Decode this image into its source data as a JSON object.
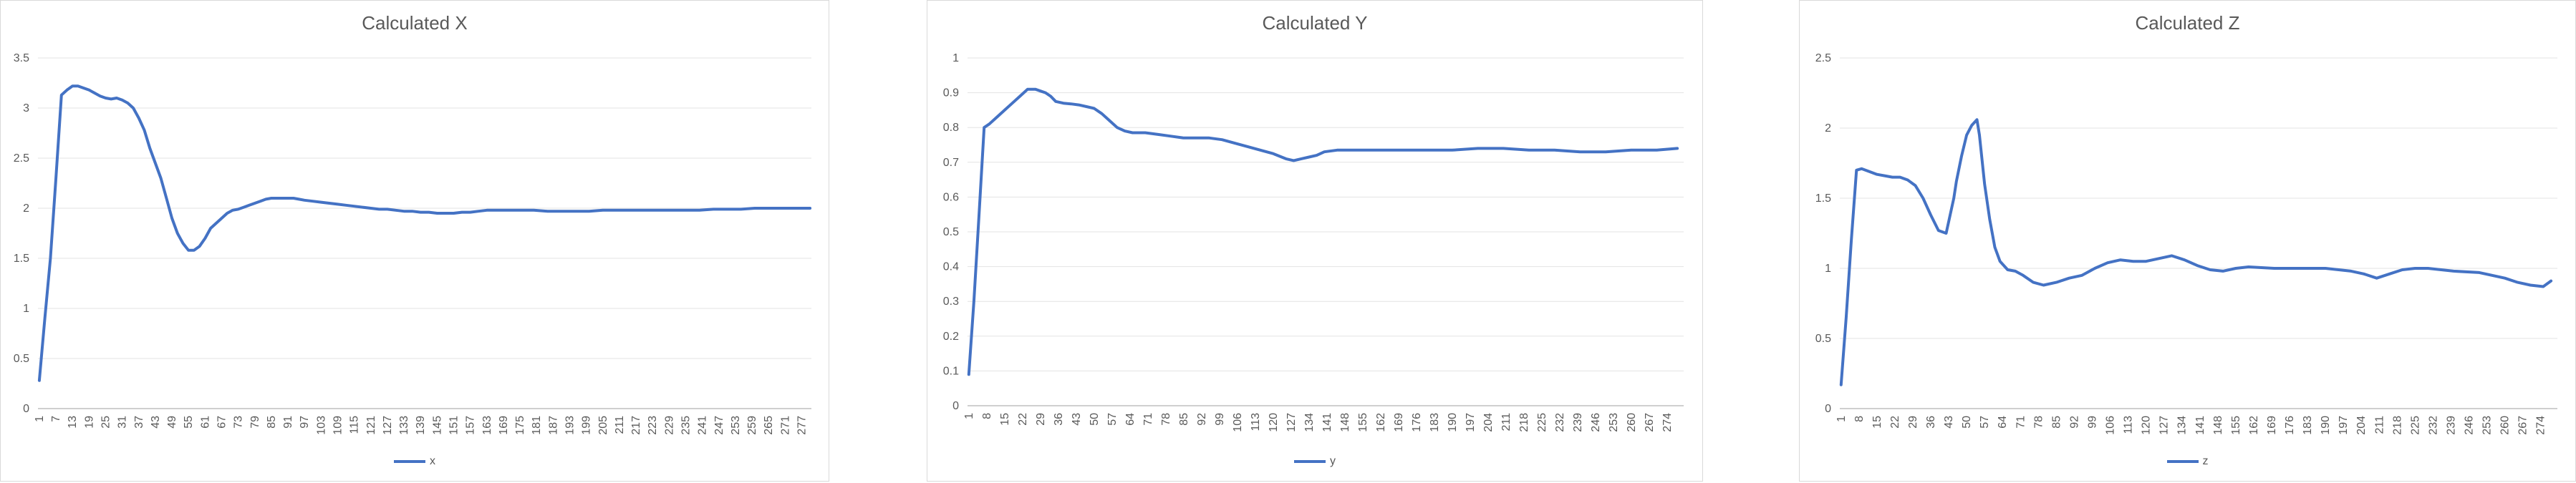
{
  "chart_data": [
    {
      "type": "line",
      "title": "Calculated X",
      "legend": "x",
      "legend_position": "bottom",
      "grid": true,
      "ylim": [
        0,
        3.5
      ],
      "yticks": [
        "0",
        "0.5",
        "1",
        "1.5",
        "2",
        "2.5",
        "3",
        "3.5"
      ],
      "xticks": [
        "1",
        "7",
        "13",
        "19",
        "25",
        "31",
        "37",
        "43",
        "49",
        "55",
        "61",
        "67",
        "73",
        "79",
        "85",
        "91",
        "97",
        "103",
        "109",
        "115",
        "121",
        "127",
        "133",
        "139",
        "145",
        "151",
        "157",
        "163",
        "169",
        "175",
        "181",
        "187",
        "193",
        "199",
        "205",
        "211",
        "217",
        "223",
        "229",
        "235",
        "241",
        "247",
        "253",
        "259",
        "265",
        "271",
        "277"
      ],
      "x": [
        1,
        3,
        5,
        7,
        9,
        11,
        13,
        15,
        17,
        19,
        21,
        23,
        25,
        27,
        29,
        31,
        33,
        35,
        37,
        39,
        41,
        43,
        45,
        47,
        49,
        51,
        53,
        55,
        57,
        59,
        61,
        63,
        65,
        67,
        69,
        71,
        73,
        75,
        77,
        79,
        81,
        83,
        85,
        87,
        89,
        91,
        93,
        95,
        97,
        100,
        103,
        106,
        109,
        112,
        115,
        118,
        121,
        124,
        127,
        130,
        133,
        136,
        139,
        142,
        145,
        148,
        151,
        154,
        157,
        160,
        163,
        166,
        169,
        172,
        175,
        180,
        185,
        190,
        195,
        200,
        205,
        210,
        215,
        220,
        225,
        230,
        235,
        240,
        245,
        250,
        255,
        260,
        265,
        270,
        275,
        280
      ],
      "series": [
        {
          "name": "x",
          "values": [
            0.28,
            0.9,
            1.5,
            2.3,
            3.13,
            3.18,
            3.22,
            3.22,
            3.2,
            3.18,
            3.15,
            3.12,
            3.1,
            3.09,
            3.1,
            3.08,
            3.05,
            3.0,
            2.9,
            2.78,
            2.6,
            2.45,
            2.3,
            2.1,
            1.9,
            1.75,
            1.65,
            1.58,
            1.58,
            1.62,
            1.7,
            1.8,
            1.85,
            1.9,
            1.95,
            1.98,
            1.99,
            2.01,
            2.03,
            2.05,
            2.07,
            2.09,
            2.1,
            2.1,
            2.1,
            2.1,
            2.1,
            2.09,
            2.08,
            2.07,
            2.06,
            2.05,
            2.04,
            2.03,
            2.02,
            2.01,
            2.0,
            1.99,
            1.99,
            1.98,
            1.97,
            1.97,
            1.96,
            1.96,
            1.95,
            1.95,
            1.95,
            1.96,
            1.96,
            1.97,
            1.98,
            1.98,
            1.98,
            1.98,
            1.98,
            1.98,
            1.97,
            1.97,
            1.97,
            1.97,
            1.98,
            1.98,
            1.98,
            1.98,
            1.98,
            1.98,
            1.98,
            1.98,
            1.99,
            1.99,
            1.99,
            2.0,
            2.0,
            2.0,
            2.0,
            2.0
          ]
        }
      ]
    },
    {
      "type": "line",
      "title": "Calculated Y",
      "legend": "y",
      "legend_position": "bottom",
      "grid": true,
      "ylim": [
        0,
        1
      ],
      "yticks": [
        "0",
        "0.1",
        "0.2",
        "0.3",
        "0.4",
        "0.5",
        "0.6",
        "0.7",
        "0.8",
        "0.9",
        "1"
      ],
      "xticks": [
        "1",
        "8",
        "15",
        "22",
        "29",
        "36",
        "43",
        "50",
        "57",
        "64",
        "71",
        "78",
        "85",
        "92",
        "99",
        "106",
        "113",
        "120",
        "127",
        "134",
        "141",
        "148",
        "155",
        "162",
        "169",
        "176",
        "183",
        "190",
        "197",
        "204",
        "211",
        "218",
        "225",
        "232",
        "239",
        "246",
        "253",
        "260",
        "267",
        "274"
      ],
      "x": [
        1,
        3,
        5,
        7,
        9,
        12,
        15,
        18,
        21,
        24,
        27,
        29,
        31,
        33,
        35,
        38,
        41,
        44,
        47,
        50,
        53,
        56,
        59,
        62,
        65,
        70,
        75,
        80,
        85,
        90,
        95,
        100,
        105,
        110,
        115,
        120,
        125,
        128,
        131,
        134,
        137,
        140,
        145,
        150,
        160,
        170,
        180,
        190,
        200,
        210,
        220,
        230,
        240,
        250,
        260,
        270,
        278
      ],
      "series": [
        {
          "name": "y",
          "values": [
            0.09,
            0.3,
            0.55,
            0.8,
            0.81,
            0.83,
            0.85,
            0.87,
            0.89,
            0.91,
            0.91,
            0.905,
            0.9,
            0.89,
            0.875,
            0.87,
            0.868,
            0.865,
            0.86,
            0.855,
            0.84,
            0.82,
            0.8,
            0.79,
            0.785,
            0.785,
            0.78,
            0.775,
            0.77,
            0.77,
            0.77,
            0.765,
            0.755,
            0.745,
            0.735,
            0.725,
            0.71,
            0.705,
            0.71,
            0.715,
            0.72,
            0.73,
            0.735,
            0.735,
            0.735,
            0.735,
            0.735,
            0.735,
            0.74,
            0.74,
            0.735,
            0.735,
            0.73,
            0.73,
            0.735,
            0.735,
            0.74
          ]
        }
      ]
    },
    {
      "type": "line",
      "title": "Calculated Z",
      "legend": "z",
      "legend_position": "bottom",
      "grid": true,
      "ylim": [
        0,
        2.5
      ],
      "yticks": [
        "0",
        "0.5",
        "1",
        "1.5",
        "2",
        "2.5"
      ],
      "xticks": [
        "1",
        "8",
        "15",
        "22",
        "29",
        "36",
        "43",
        "50",
        "57",
        "64",
        "71",
        "78",
        "85",
        "92",
        "99",
        "106",
        "113",
        "120",
        "127",
        "134",
        "141",
        "148",
        "155",
        "162",
        "169",
        "176",
        "183",
        "190",
        "197",
        "204",
        "211",
        "218",
        "225",
        "232",
        "239",
        "246",
        "253",
        "260",
        "267",
        "274"
      ],
      "x": [
        1,
        3,
        5,
        7,
        9,
        12,
        15,
        18,
        21,
        24,
        27,
        30,
        33,
        36,
        39,
        42,
        45,
        46,
        48,
        50,
        52,
        54,
        55,
        57,
        59,
        61,
        63,
        66,
        69,
        72,
        76,
        80,
        85,
        90,
        95,
        100,
        105,
        110,
        115,
        120,
        125,
        130,
        135,
        140,
        145,
        150,
        155,
        160,
        170,
        180,
        190,
        200,
        205,
        210,
        215,
        220,
        225,
        230,
        240,
        250,
        260,
        265,
        270,
        275,
        278
      ],
      "series": [
        {
          "name": "z",
          "values": [
            0.17,
            0.65,
            1.2,
            1.7,
            1.71,
            1.69,
            1.67,
            1.66,
            1.65,
            1.65,
            1.63,
            1.59,
            1.5,
            1.38,
            1.27,
            1.25,
            1.5,
            1.62,
            1.8,
            1.95,
            2.02,
            2.06,
            1.95,
            1.6,
            1.35,
            1.15,
            1.05,
            0.99,
            0.98,
            0.95,
            0.9,
            0.88,
            0.9,
            0.93,
            0.95,
            1.0,
            1.04,
            1.06,
            1.05,
            1.05,
            1.07,
            1.09,
            1.06,
            1.02,
            0.99,
            0.98,
            1.0,
            1.01,
            1.0,
            1.0,
            1.0,
            0.98,
            0.96,
            0.93,
            0.96,
            0.99,
            1.0,
            1.0,
            0.98,
            0.97,
            0.93,
            0.9,
            0.88,
            0.87,
            0.91
          ]
        }
      ]
    }
  ]
}
